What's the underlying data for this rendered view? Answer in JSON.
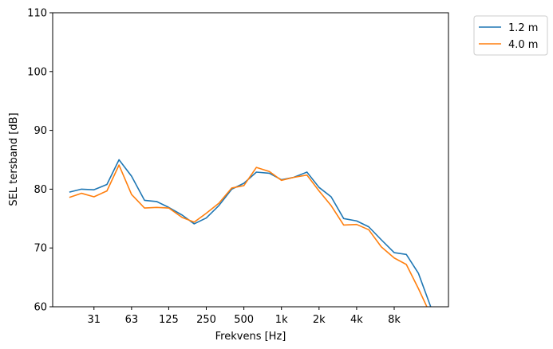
{
  "chart_data": {
    "type": "line",
    "xlabel": "Frekvens [Hz]",
    "ylabel": "SEL tersband [dB]",
    "x_scale": "log",
    "ylim": [
      60,
      110
    ],
    "yticks": [
      60,
      70,
      80,
      90,
      100,
      110
    ],
    "xticks": [
      {
        "label": "31",
        "value": 31.5
      },
      {
        "label": "63",
        "value": 63
      },
      {
        "label": "125",
        "value": 125
      },
      {
        "label": "250",
        "value": 250
      },
      {
        "label": "500",
        "value": 500
      },
      {
        "label": "1k",
        "value": 1000
      },
      {
        "label": "2k",
        "value": 2000
      },
      {
        "label": "4k",
        "value": 4000
      },
      {
        "label": "8k",
        "value": 8000
      }
    ],
    "grid": false,
    "legend": "outside-top-right",
    "x": [
      20,
      25,
      31.5,
      40,
      50,
      63,
      80,
      100,
      125,
      160,
      200,
      250,
      315,
      400,
      500,
      630,
      800,
      1000,
      1250,
      1600,
      2000,
      2500,
      3150,
      4000,
      5000,
      6300,
      8000,
      10000,
      12500,
      16000
    ],
    "series": [
      {
        "name": "1.2 m",
        "color": "#1f77b4",
        "values": [
          79.5,
          80.0,
          79.9,
          80.8,
          85.0,
          82.2,
          78.1,
          77.9,
          76.9,
          75.6,
          74.1,
          75.1,
          77.2,
          80.0,
          81.0,
          82.9,
          82.7,
          81.6,
          82.0,
          82.9,
          80.3,
          78.7,
          75.0,
          74.6,
          73.6,
          71.4,
          69.2,
          68.9,
          65.7,
          59.5
        ]
      },
      {
        "name": "4.0 m",
        "color": "#ff7f0e",
        "values": [
          78.6,
          79.3,
          78.7,
          79.7,
          84.1,
          79.1,
          76.8,
          76.9,
          76.8,
          75.2,
          74.4,
          75.9,
          77.6,
          80.2,
          80.6,
          83.7,
          83.0,
          81.5,
          82.0,
          82.4,
          79.7,
          77.2,
          73.9,
          74.0,
          73.1,
          70.2,
          68.3,
          67.2,
          63.1,
          58.2
        ]
      }
    ]
  }
}
